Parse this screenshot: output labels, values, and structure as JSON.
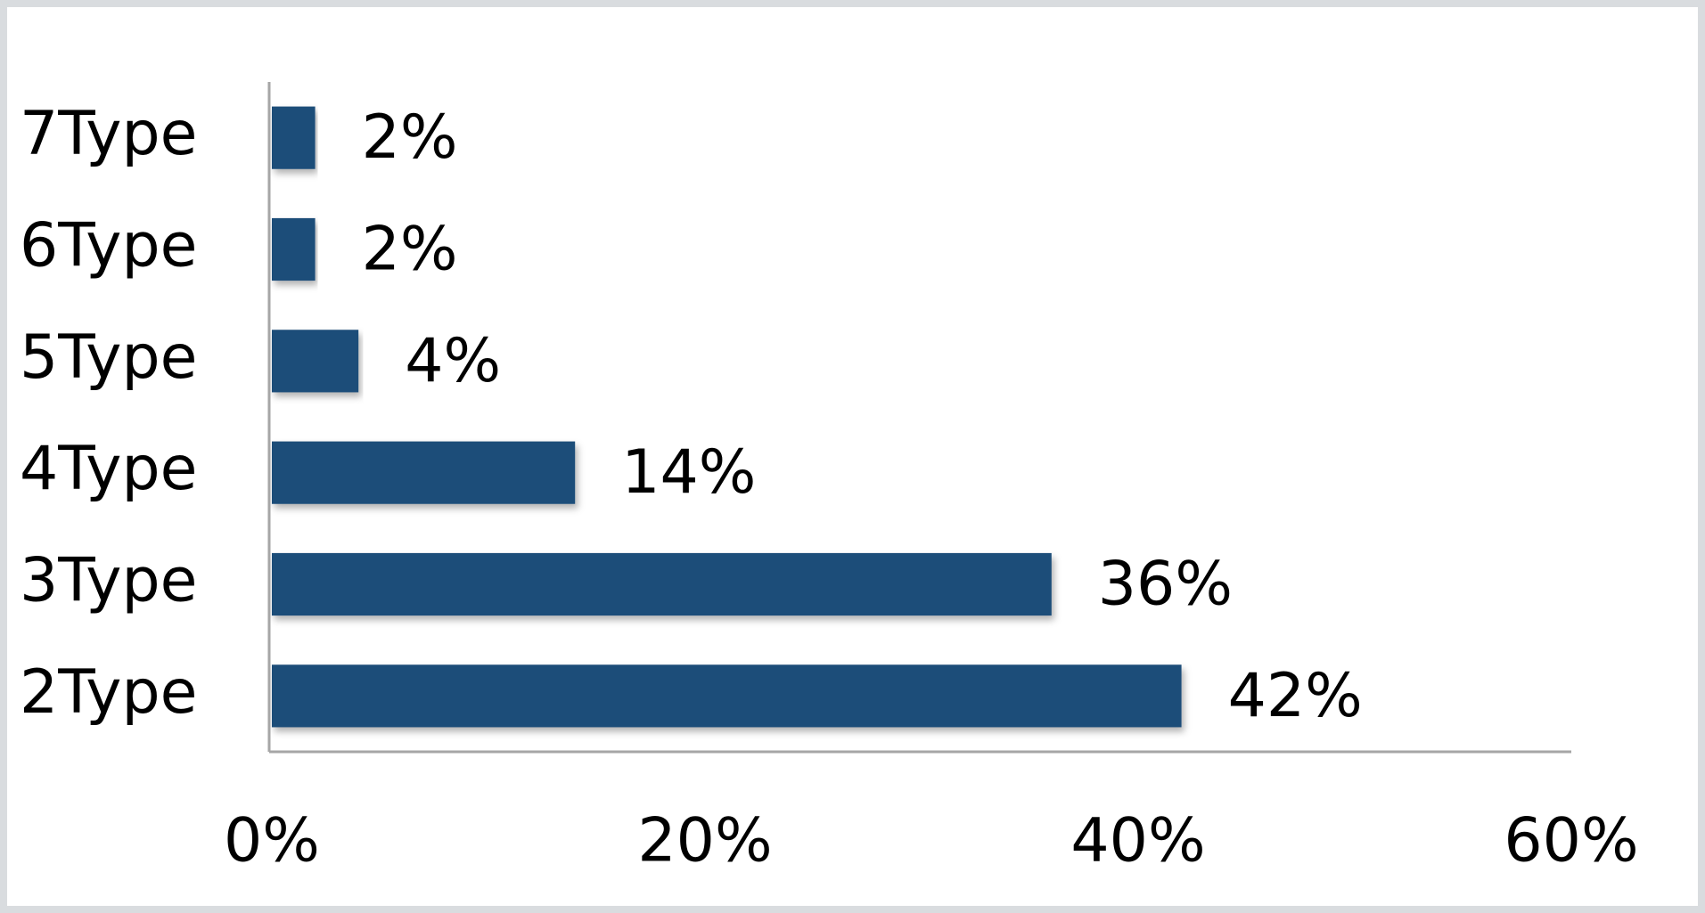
{
  "chart_data": {
    "type": "bar",
    "orientation": "horizontal",
    "categories": [
      "2Type",
      "3Type",
      "4Type",
      "5Type",
      "6Type",
      "7Type"
    ],
    "values": [
      42,
      36,
      14,
      4,
      2,
      2
    ],
    "value_labels": [
      "42%",
      "36%",
      "14%",
      "4%",
      "2%",
      "2%"
    ],
    "color": "#1f4e79",
    "xlim": [
      0,
      60
    ],
    "xticks": [
      {
        "value": 0,
        "label": "0%"
      },
      {
        "value": 20,
        "label": "20%"
      },
      {
        "value": 40,
        "label": "40%"
      },
      {
        "value": 60,
        "label": "60%"
      }
    ],
    "grid": false
  }
}
